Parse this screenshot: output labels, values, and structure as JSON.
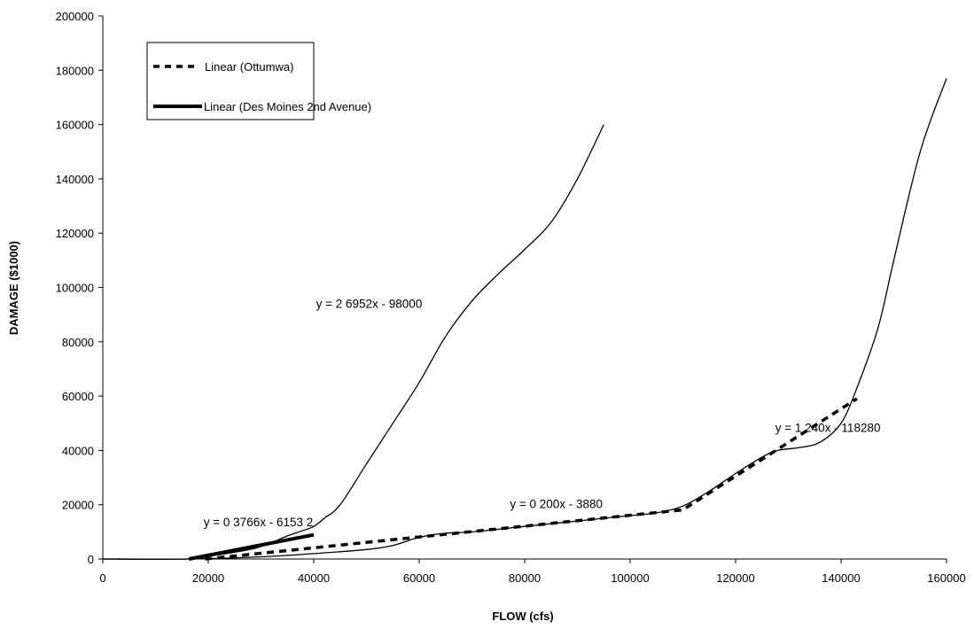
{
  "chart_data": {
    "type": "line",
    "xlabel": "FLOW (cfs)",
    "ylabel": "DAMAGE ($1000)",
    "xlim": [
      0,
      160000
    ],
    "ylim": [
      0,
      200000
    ],
    "xticks": [
      0,
      20000,
      40000,
      60000,
      80000,
      100000,
      120000,
      140000,
      160000
    ],
    "yticks": [
      0,
      20000,
      40000,
      60000,
      80000,
      100000,
      120000,
      140000,
      160000,
      180000,
      200000
    ],
    "grid": false,
    "legend_position": "top-left",
    "legend": [
      {
        "label": "Linear (Ottumwa)",
        "style": "dashed"
      },
      {
        "label": "Linear (Des Moines 2nd Avenue)",
        "style": "thick-solid"
      }
    ],
    "series": [
      {
        "style": "thin-solid",
        "x": [
          0,
          16000,
          20000,
          25000,
          29000,
          32000,
          35000,
          38000,
          40000,
          42000,
          45000,
          50000,
          55000,
          60000,
          65000,
          70000,
          75000,
          80000,
          85000,
          90000,
          95000
        ],
        "y": [
          0,
          0,
          1000,
          2500,
          4000,
          6000,
          8500,
          10500,
          12000,
          15000,
          20000,
          35000,
          50000,
          65000,
          82000,
          95000,
          105000,
          114000,
          124000,
          140000,
          160000
        ]
      },
      {
        "style": "thin-solid",
        "x": [
          0,
          16000,
          30000,
          40000,
          50000,
          55000,
          60000,
          65000,
          70000,
          80000,
          90000,
          100000,
          105000,
          110000,
          115000,
          120000,
          125000,
          128000,
          132000,
          136000,
          140000,
          143000,
          147000,
          150000,
          155000,
          160000
        ],
        "y": [
          0,
          0,
          800,
          2000,
          3500,
          5000,
          8000,
          9500,
          10000,
          12000,
          14000,
          16000,
          17000,
          19500,
          25000,
          31500,
          37500,
          40000,
          41000,
          43000,
          50000,
          63000,
          85000,
          110000,
          150000,
          177000
        ]
      },
      {
        "name": "Linear (Ottumwa)",
        "style": "dashed",
        "x": [
          19400,
          110000,
          143000
        ],
        "y": [
          0,
          18120,
          59040
        ]
      },
      {
        "name": "Linear (Des Moines 2nd Avenue)",
        "style": "thick-solid",
        "x": [
          16338,
          40000
        ],
        "y": [
          0,
          8911
        ]
      }
    ],
    "annotations": [
      {
        "text": "y = 2 6952x - 98000",
        "x": 50500,
        "y": 92500
      },
      {
        "text": "y = 1 240x - 118280",
        "x": 137500,
        "y": 46800
      },
      {
        "text": "y = 0 200x - 3880",
        "x": 86000,
        "y": 18700
      },
      {
        "text": "y = 0 3766x - 6153 2",
        "x": 29500,
        "y": 12000
      }
    ]
  }
}
